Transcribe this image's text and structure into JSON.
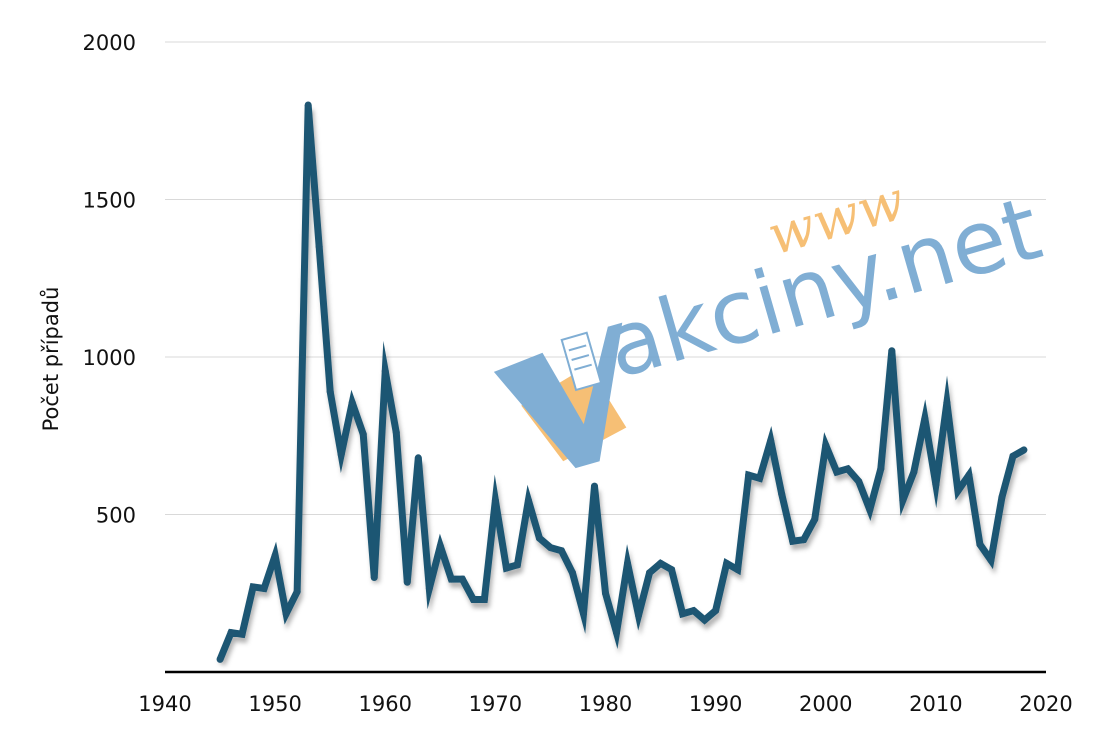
{
  "chart_data": {
    "type": "line",
    "title": "",
    "xlabel": "",
    "ylabel": "Počet případů",
    "xlim": [
      1940,
      2020
    ],
    "ylim": [
      0,
      2000
    ],
    "x_ticks": [
      1940,
      1950,
      1960,
      1970,
      1980,
      1990,
      2000,
      2010,
      2020
    ],
    "y_ticks": [
      500,
      1000,
      1500,
      2000
    ],
    "grid": "horizontal",
    "legend": "none",
    "line_color": "#1f5673",
    "series": [
      {
        "x": [
          1945,
          1946,
          1947,
          1948,
          1949,
          1950,
          1951,
          1952,
          1953,
          1954,
          1955,
          1956,
          1957,
          1958,
          1959,
          1960,
          1961,
          1962,
          1963,
          1964,
          1965,
          1966,
          1967,
          1968,
          1969,
          1970,
          1971,
          1972,
          1973,
          1974,
          1975,
          1976,
          1977,
          1978,
          1979,
          1980,
          1981,
          1982,
          1983,
          1984,
          1985,
          1986,
          1987,
          1988,
          1989,
          1990,
          1991,
          1992,
          1993,
          1994,
          1995,
          1996,
          1997,
          1998,
          1999,
          2000,
          2001,
          2002,
          2003,
          2004,
          2005,
          2006,
          2007,
          2008,
          2009,
          2010,
          2011,
          2012,
          2013,
          2014,
          2015,
          2016,
          2017,
          2018
        ],
        "values": [
          40,
          125,
          120,
          270,
          265,
          370,
          185,
          255,
          1800,
          1350,
          890,
          690,
          855,
          755,
          300,
          955,
          760,
          285,
          680,
          265,
          400,
          295,
          295,
          230,
          230,
          545,
          330,
          340,
          545,
          425,
          395,
          385,
          315,
          185,
          590,
          250,
          125,
          345,
          180,
          315,
          345,
          325,
          185,
          195,
          165,
          195,
          345,
          325,
          625,
          615,
          735,
          565,
          415,
          420,
          485,
          720,
          635,
          645,
          605,
          515,
          645,
          1020,
          545,
          635,
          805,
          595,
          855,
          575,
          625,
          405,
          355,
          555,
          685,
          705
        ]
      }
    ]
  },
  "watermark": {
    "www": "www",
    "text": "akciny.net",
    "blue": "#6fa3cf",
    "orange": "#f5b763"
  }
}
